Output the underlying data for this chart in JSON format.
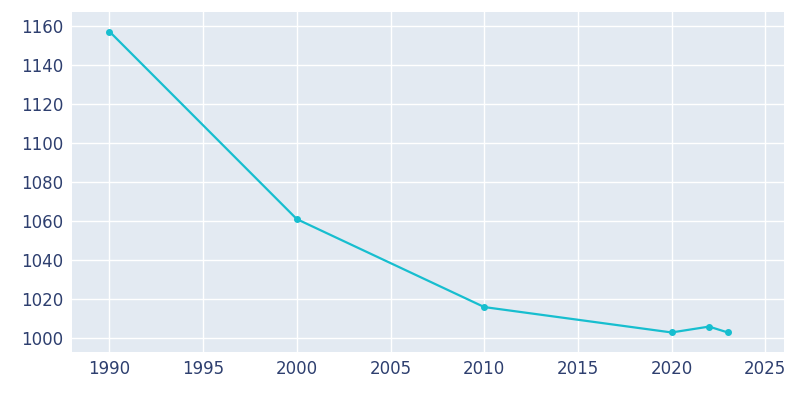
{
  "years": [
    1990,
    2000,
    2010,
    2020,
    2022,
    2023
  ],
  "population": [
    1157,
    1061,
    1016,
    1003,
    1006,
    1003
  ],
  "line_color": "#17BECF",
  "marker_color": "#17BECF",
  "fig_bg_color": "#ffffff",
  "plot_bg_color": "#E3EAF2",
  "grid_color": "#ffffff",
  "xlim": [
    1988,
    2026
  ],
  "ylim": [
    993,
    1167
  ],
  "xticks": [
    1990,
    1995,
    2000,
    2005,
    2010,
    2015,
    2020,
    2025
  ],
  "yticks": [
    1000,
    1020,
    1040,
    1060,
    1080,
    1100,
    1120,
    1140,
    1160
  ],
  "tick_label_color": "#2E3F6F",
  "marker_size": 4,
  "line_width": 1.6,
  "tick_fontsize": 12
}
